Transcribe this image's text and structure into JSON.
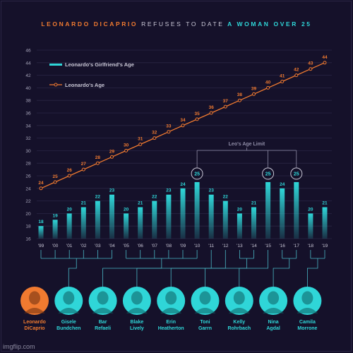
{
  "title": {
    "part1": "LEONARDO DICAPRIO",
    "part2": "REFUSES TO DATE",
    "part3": "A WOMAN OVER 25"
  },
  "colors": {
    "background": "#15112a",
    "leo_line": "#f07a30",
    "girlfriend_bar": "#2fd6d8",
    "grid": "#2a2645",
    "connector": "#4ab6c4",
    "title_orange": "#f07a30",
    "title_cyan": "#2fd6d8"
  },
  "annotation": "Leo's Age Limit",
  "watermark": "imgflip.com",
  "chart_data": {
    "type": "bar+line",
    "categories": [
      "'99",
      "'00",
      "'01",
      "'02",
      "'03",
      "'04",
      "'05",
      "'06",
      "'07",
      "'08",
      "'09",
      "'10",
      "'11",
      "'12",
      "'13",
      "'14",
      "'15",
      "'16",
      "'17",
      "'18",
      "'19"
    ],
    "ylim": [
      16,
      46
    ],
    "yticks": [
      16,
      18,
      20,
      22,
      24,
      26,
      28,
      30,
      32,
      34,
      36,
      38,
      40,
      42,
      44,
      46
    ],
    "grid": true,
    "legend_position": "top-left",
    "series": [
      {
        "name": "Leonardo's Girlfriend's Age",
        "type": "bar",
        "values": [
          18,
          19,
          20,
          21,
          22,
          23,
          20,
          21,
          22,
          23,
          24,
          25,
          23,
          22,
          20,
          21,
          25,
          24,
          25,
          20,
          21
        ]
      },
      {
        "name": "Leonardo's Age",
        "type": "line",
        "values": [
          24,
          25,
          26,
          27,
          28,
          29,
          30,
          31,
          32,
          33,
          34,
          35,
          36,
          37,
          38,
          39,
          40,
          41,
          42,
          43,
          44
        ]
      }
    ],
    "highlight_values": [
      25
    ]
  },
  "people": [
    {
      "name": "Leonardo DiCaprio",
      "line1": "Leonardo",
      "line2": "DiCaprio",
      "role": "leo",
      "years": []
    },
    {
      "name": "Gisele Bundchen",
      "line1": "Gisele",
      "line2": "Bundchen",
      "years": [
        "'99",
        "'00",
        "'01",
        "'02",
        "'03",
        "'04"
      ]
    },
    {
      "name": "Bar Refaeli",
      "line1": "Bar",
      "line2": "Refaeli",
      "years": [
        "'05",
        "'06",
        "'07",
        "'08",
        "'09",
        "'10"
      ]
    },
    {
      "name": "Blake Lively",
      "line1": "Blake",
      "line2": "Lively",
      "years": [
        "'11"
      ]
    },
    {
      "name": "Erin Heatherton",
      "line1": "Erin",
      "line2": "Heatherton",
      "years": [
        "'12"
      ]
    },
    {
      "name": "Toni Garrn",
      "line1": "Toni",
      "line2": "Garrn",
      "years": [
        "'13",
        "'14"
      ]
    },
    {
      "name": "Kelly Rohrbach",
      "line1": "Kelly",
      "line2": "Rohrbach",
      "years": [
        "'15"
      ]
    },
    {
      "name": "Nina Agdal",
      "line1": "Nina",
      "line2": "Agdal",
      "years": [
        "'16",
        "'17"
      ]
    },
    {
      "name": "Camila Morrone",
      "line1": "Camila",
      "line2": "Morrone",
      "years": [
        "'18",
        "'19"
      ]
    }
  ]
}
